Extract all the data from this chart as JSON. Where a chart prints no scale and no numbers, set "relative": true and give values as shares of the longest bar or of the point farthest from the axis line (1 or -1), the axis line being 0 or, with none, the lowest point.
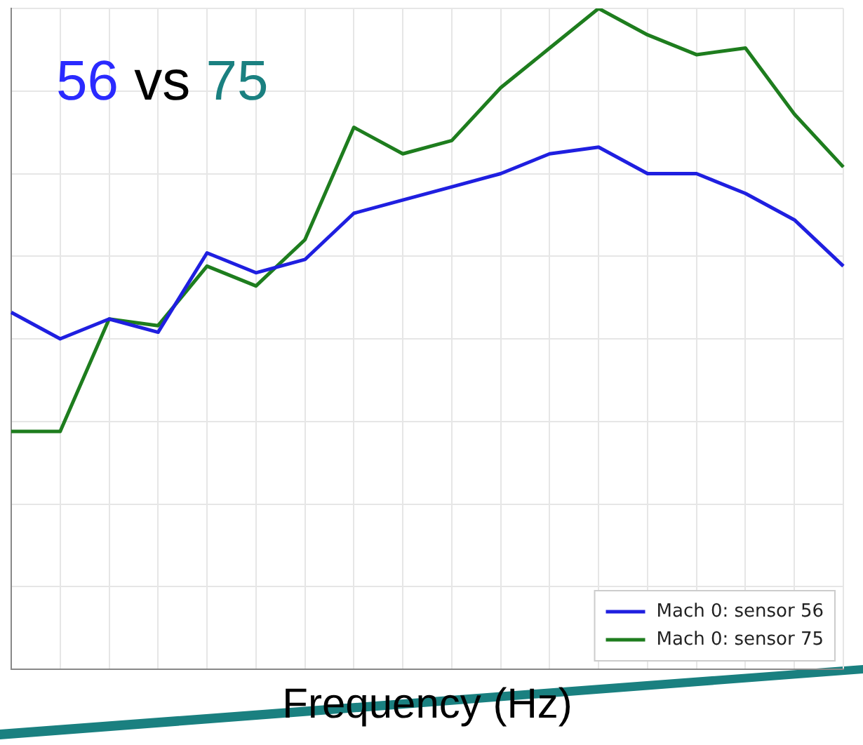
{
  "chart_data": {
    "type": "line",
    "title": "56 vs 75",
    "xlabel": "Frequency (Hz)",
    "relative": true,
    "grid": true,
    "legend": "bottom right",
    "marker": "none",
    "line_style": "solid",
    "categories": [
      null,
      null,
      null,
      null,
      null,
      null,
      null,
      null,
      null,
      null,
      null,
      null,
      null,
      null,
      null,
      null,
      null,
      null
    ],
    "series": [
      {
        "name": "Mach 0: sensor 56",
        "color": "#1f1fe0",
        "values": [
          0.54,
          0.5,
          0.53,
          0.51,
          0.63,
          0.6,
          0.62,
          0.69,
          0.71,
          0.73,
          0.75,
          0.78,
          0.79,
          0.75,
          0.75,
          0.72,
          0.68,
          0.61
        ]
      },
      {
        "name": "Mach 0: sensor 75",
        "color": "#1e7d1e",
        "values": [
          0.36,
          0.36,
          0.53,
          0.52,
          0.61,
          0.58,
          0.65,
          0.82,
          0.78,
          0.8,
          0.88,
          0.94,
          1,
          0.96,
          0.93,
          0.94,
          0.84,
          0.76
        ]
      }
    ]
  }
}
